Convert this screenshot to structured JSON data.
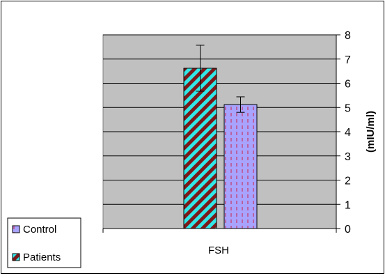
{
  "chart_data": {
    "type": "bar",
    "categories": [
      "FSH"
    ],
    "series": [
      {
        "name": "Patients",
        "values": [
          6.62
        ],
        "error": [
          0.95
        ],
        "pattern": "diagonal-stripes",
        "colors": [
          "#7a1a1a",
          "#33e6e6"
        ]
      },
      {
        "name": "Control",
        "values": [
          5.12
        ],
        "error": [
          0.32
        ],
        "pattern": "dashed-vertical",
        "colors": [
          "#a8a3ff",
          "#cc2244"
        ]
      }
    ],
    "title": "",
    "xlabel": "",
    "ylabel": "(mIU/ml)",
    "ylim": [
      0,
      8
    ],
    "yticks": [
      0,
      1,
      2,
      3,
      4,
      5,
      6,
      7,
      8
    ],
    "yaxis_side": "right",
    "grid": true,
    "plot_background": "#c0c0c0",
    "legend": {
      "position": "bottom-left",
      "entries": [
        "Control",
        "Patients"
      ]
    }
  }
}
